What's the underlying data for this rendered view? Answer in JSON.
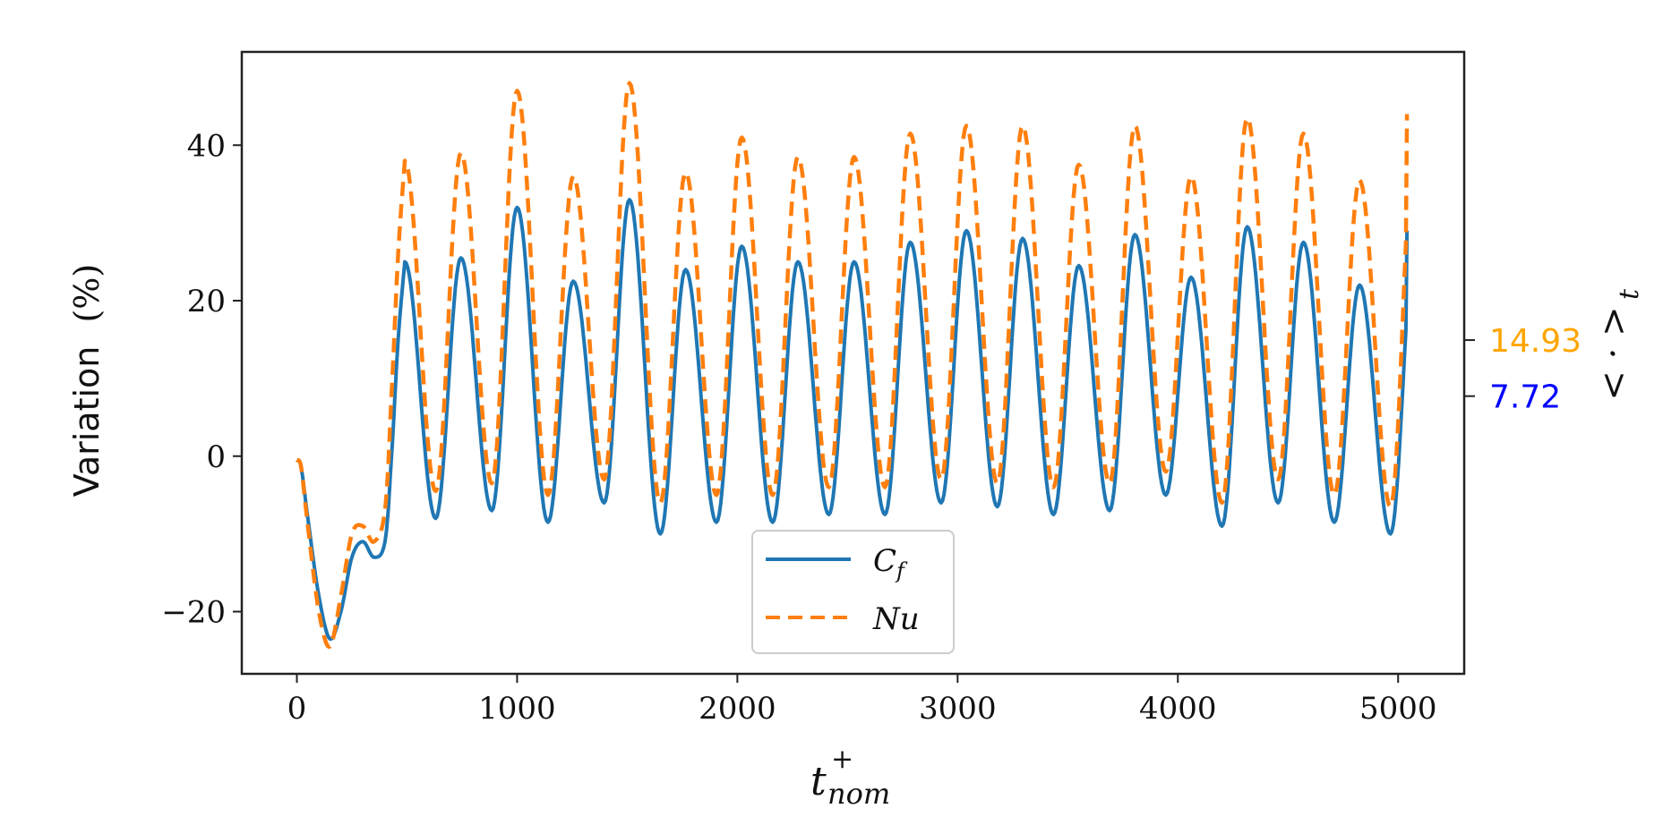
{
  "chart_data": {
    "type": "line",
    "title": "",
    "ylabel": "Variation",
    "ylabel_unit": "(%)",
    "xlabel_base": "t",
    "xlabel_sup": "+",
    "xlabel_sub": "nom",
    "xlim": [
      -250,
      5300
    ],
    "ylim": [
      -28,
      52
    ],
    "xticks": [
      0,
      1000,
      2000,
      3000,
      4000,
      5000
    ],
    "xtick_labels": [
      "0",
      "1000",
      "2000",
      "3000",
      "4000",
      "5000"
    ],
    "yticks": [
      -20,
      0,
      20,
      40
    ],
    "ytick_labels": [
      "−20",
      "0",
      "20",
      "40"
    ],
    "grid": false,
    "legend_position": "lower-center",
    "transient": {
      "x": [
        0,
        20,
        50,
        100,
        150,
        200,
        250,
        300,
        350,
        400,
        430,
        460,
        490
      ],
      "cf": [
        -0.5,
        -1.5,
        -8,
        -18,
        -23.5,
        -20,
        -13,
        -11,
        -13,
        -11,
        0,
        15,
        25
      ],
      "nu": [
        -0.5,
        -1.5,
        -9,
        -20,
        -24.5,
        -18,
        -10,
        -9,
        -11,
        -7,
        8,
        26,
        38
      ]
    },
    "series": [
      {
        "name": "C_f",
        "legend_label": "C",
        "legend_sub": "f",
        "color": "#1f77b4",
        "style": "solid",
        "peaks": [
          25,
          25.5,
          32,
          22.5,
          33,
          24,
          27,
          25,
          25,
          27.5,
          29,
          28,
          24.5,
          28.5,
          23,
          29.5,
          27.5,
          22,
          29
        ],
        "troughs": [
          -8,
          -7,
          -8.5,
          -6,
          -10,
          -8.5,
          -8.5,
          -7.5,
          -7.5,
          -6,
          -6.5,
          -7.5,
          -7,
          -5,
          -9,
          -6,
          -8.5,
          -10,
          -9
        ]
      },
      {
        "name": "Nu",
        "legend_label": "Nu",
        "legend_sub": "",
        "color": "#ff7f0e",
        "style": "dashed",
        "peaks": [
          38,
          39,
          47,
          36,
          48,
          36.5,
          41,
          38.5,
          38.5,
          41.5,
          42.5,
          42.5,
          37.5,
          42.5,
          36,
          43.5,
          41.5,
          35.5,
          44
        ],
        "troughs": [
          -4.5,
          -3.5,
          -5,
          -3,
          -6,
          -5,
          -5,
          -4,
          -4,
          -3,
          -3.5,
          -4,
          -3.5,
          -2,
          -6,
          -3,
          -5,
          -6.5,
          -5
        ]
      }
    ],
    "period": 255,
    "first_peak_x": 490,
    "x_end": 5040,
    "right_axis": {
      "label": "< · >",
      "label_sub": "t",
      "ticks": [
        {
          "value": 14.93,
          "label": "14.93",
          "color": "#ffa500"
        },
        {
          "value": 7.72,
          "label": "7.72",
          "color": "#0000ff"
        }
      ]
    }
  }
}
